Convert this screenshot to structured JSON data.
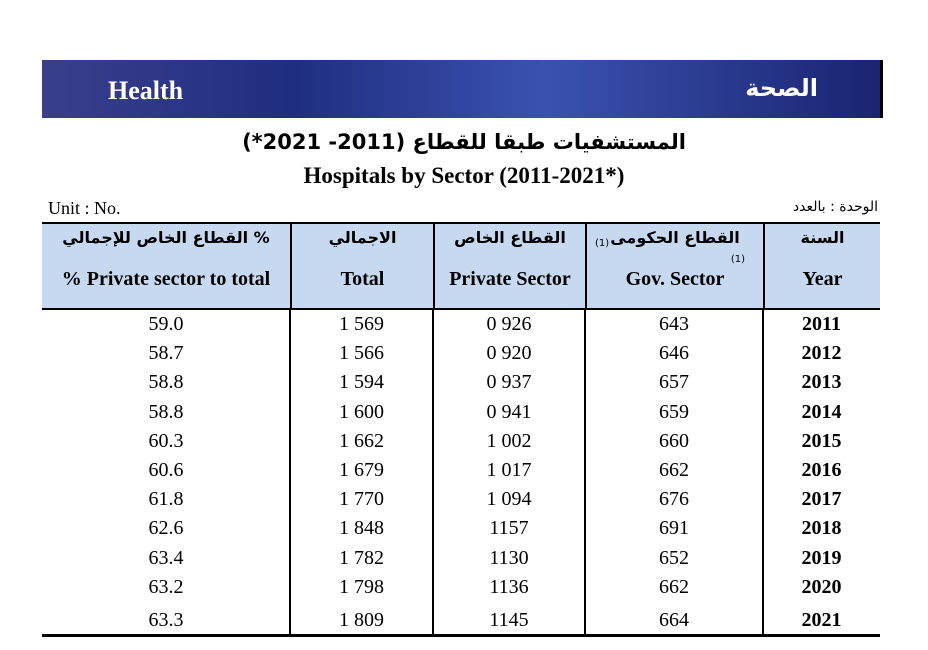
{
  "header": {
    "title_en": "Health",
    "title_ar": "الصحة"
  },
  "table_title": {
    "ar": "المستشفيات طبقا للقطاع (2011- 2021*)",
    "en": "Hospitals by Sector (2011-2021*)"
  },
  "unit": {
    "en": "Unit : No.",
    "ar": "الوحدة : بالعدد"
  },
  "table": {
    "columns": [
      {
        "ar": "% القطاع الخاص للإجمالي",
        "en": "% Private sector to total"
      },
      {
        "ar": "الاجمالي",
        "en": "Total"
      },
      {
        "ar": "القطاع الخاص",
        "en": "Private Sector"
      },
      {
        "ar": "القطاع الحكومى",
        "en": "Gov. Sector",
        "note": "(1)"
      },
      {
        "ar": "السنة",
        "en": "Year"
      }
    ],
    "rows": [
      [
        "59.0",
        "1 569",
        "0 926",
        "643",
        "2011"
      ],
      [
        "58.7",
        "1 566",
        "0 920",
        "646",
        "2012"
      ],
      [
        "58.8",
        "1 594",
        "0 937",
        "657",
        "2013"
      ],
      [
        "58.8",
        "1 600",
        "0 941",
        "659",
        "2014"
      ],
      [
        "60.3",
        "1 662",
        "1 002",
        "660",
        "2015"
      ],
      [
        "60.6",
        "1 679",
        "1 017",
        "662",
        "2016"
      ],
      [
        "61.8",
        "1 770",
        "1 094",
        "676",
        "2017"
      ],
      [
        "62.6",
        "1 848",
        "1157",
        "691",
        "2018"
      ],
      [
        "63.4",
        "1 782",
        "1130",
        "652",
        "2019"
      ],
      [
        "63.2",
        "1 798",
        "1136",
        "662",
        "2020"
      ],
      [
        "63.3",
        "1 809",
        "1145",
        "664",
        "2021"
      ]
    ]
  }
}
